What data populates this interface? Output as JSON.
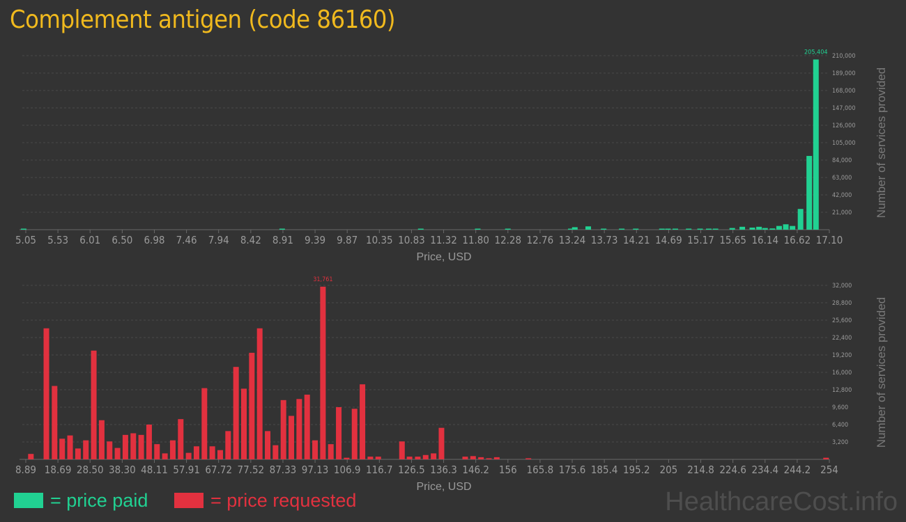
{
  "title": "Complement antigen (code 86160)",
  "colors": {
    "background": "#333333",
    "title": "#f0b91e",
    "paid": "#21d192",
    "requested": "#e2313f",
    "axis_text": "#9a9a9a",
    "grid": "#4a4a4a"
  },
  "legend": {
    "paid_label": "= price paid",
    "requested_label": "= price requested"
  },
  "watermark": "HealthcareCost.info",
  "chart_data": [
    {
      "type": "bar",
      "name": "price paid",
      "xlabel": "Price, USD",
      "ylabel": "Number of services provided",
      "ylim": [
        0,
        210000
      ],
      "ytick_labels": [
        "21,000",
        "42,000",
        "63,000",
        "84,000",
        "105,000",
        "126,000",
        "147,000",
        "168,000",
        "189,000",
        "210,000"
      ],
      "xtick_labels": [
        "5.05",
        "5.53",
        "6.01",
        "6.50",
        "6.98",
        "7.46",
        "7.94",
        "8.42",
        "8.91",
        "9.39",
        "9.87",
        "10.35",
        "10.83",
        "11.32",
        "11.80",
        "12.28",
        "12.76",
        "13.24",
        "13.73",
        "14.21",
        "14.69",
        "15.17",
        "15.65",
        "16.14",
        "16.62",
        "17.10"
      ],
      "xlim": [
        5.05,
        17.1
      ],
      "grid": true,
      "max_label": "205,404",
      "bars": [
        {
          "x": 5.07,
          "y": 900
        },
        {
          "x": 8.93,
          "y": 900
        },
        {
          "x": 11.0,
          "y": 500
        },
        {
          "x": 11.85,
          "y": 500
        },
        {
          "x": 12.3,
          "y": 500
        },
        {
          "x": 13.24,
          "y": 1200
        },
        {
          "x": 13.3,
          "y": 3000
        },
        {
          "x": 13.5,
          "y": 4000
        },
        {
          "x": 13.73,
          "y": 1200
        },
        {
          "x": 14.0,
          "y": 800
        },
        {
          "x": 14.21,
          "y": 600
        },
        {
          "x": 14.6,
          "y": 800
        },
        {
          "x": 14.69,
          "y": 1200
        },
        {
          "x": 14.8,
          "y": 800
        },
        {
          "x": 15.0,
          "y": 800
        },
        {
          "x": 15.17,
          "y": 900
        },
        {
          "x": 15.3,
          "y": 900
        },
        {
          "x": 15.4,
          "y": 1000
        },
        {
          "x": 15.65,
          "y": 2000
        },
        {
          "x": 15.8,
          "y": 3500
        },
        {
          "x": 15.95,
          "y": 2500
        },
        {
          "x": 16.05,
          "y": 3500
        },
        {
          "x": 16.14,
          "y": 2000
        },
        {
          "x": 16.25,
          "y": 1500
        },
        {
          "x": 16.35,
          "y": 4500
        },
        {
          "x": 16.45,
          "y": 6500
        },
        {
          "x": 16.55,
          "y": 4500
        },
        {
          "x": 16.67,
          "y": 25000
        },
        {
          "x": 16.8,
          "y": 89000
        },
        {
          "x": 16.9,
          "y": 205404
        }
      ]
    },
    {
      "type": "bar",
      "name": "price requested",
      "xlabel": "Price, USD",
      "ylabel": "Number of services provided",
      "ylim": [
        0,
        32000
      ],
      "ytick_labels": [
        "3,200",
        "6,400",
        "9,600",
        "12,800",
        "16,000",
        "19,200",
        "22,400",
        "25,600",
        "28,800",
        "32,000"
      ],
      "xtick_labels": [
        "8.89",
        "18.69",
        "28.50",
        "38.30",
        "48.11",
        "57.91",
        "67.72",
        "77.52",
        "87.33",
        "97.13",
        "106.9",
        "116.7",
        "126.5",
        "136.3",
        "146.2",
        "156",
        "165.8",
        "175.6",
        "185.4",
        "195.2",
        "205",
        "214.8",
        "224.6",
        "234.4",
        "244.2",
        "254"
      ],
      "xlim": [
        8.89,
        254
      ],
      "grid": true,
      "max_label": "31,761",
      "bars": [
        {
          "x": 11.5,
          "y": 1000
        },
        {
          "x": 16.2,
          "y": 24100
        },
        {
          "x": 18.69,
          "y": 13500
        },
        {
          "x": 21.0,
          "y": 3800
        },
        {
          "x": 23.4,
          "y": 4400
        },
        {
          "x": 25.8,
          "y": 2000
        },
        {
          "x": 28.2,
          "y": 3500
        },
        {
          "x": 30.6,
          "y": 20000
        },
        {
          "x": 33.0,
          "y": 7200
        },
        {
          "x": 35.4,
          "y": 3300
        },
        {
          "x": 37.8,
          "y": 2100
        },
        {
          "x": 40.2,
          "y": 4500
        },
        {
          "x": 42.6,
          "y": 4800
        },
        {
          "x": 45.0,
          "y": 4500
        },
        {
          "x": 47.4,
          "y": 6400
        },
        {
          "x": 49.8,
          "y": 2800
        },
        {
          "x": 52.2,
          "y": 1100
        },
        {
          "x": 54.6,
          "y": 3500
        },
        {
          "x": 57.0,
          "y": 7400
        },
        {
          "x": 59.4,
          "y": 1200
        },
        {
          "x": 61.8,
          "y": 2400
        },
        {
          "x": 64.2,
          "y": 13100
        },
        {
          "x": 66.6,
          "y": 2400
        },
        {
          "x": 69.0,
          "y": 1700
        },
        {
          "x": 71.4,
          "y": 5200
        },
        {
          "x": 73.8,
          "y": 17000
        },
        {
          "x": 76.2,
          "y": 13000
        },
        {
          "x": 78.6,
          "y": 19600
        },
        {
          "x": 81.0,
          "y": 24100
        },
        {
          "x": 83.4,
          "y": 5200
        },
        {
          "x": 85.8,
          "y": 2600
        },
        {
          "x": 88.2,
          "y": 10900
        },
        {
          "x": 90.6,
          "y": 8000
        },
        {
          "x": 93.0,
          "y": 11100
        },
        {
          "x": 95.4,
          "y": 11900
        },
        {
          "x": 97.8,
          "y": 3500
        },
        {
          "x": 100.2,
          "y": 31761
        },
        {
          "x": 102.6,
          "y": 2800
        },
        {
          "x": 105.0,
          "y": 9600
        },
        {
          "x": 107.4,
          "y": 300
        },
        {
          "x": 109.8,
          "y": 9300
        },
        {
          "x": 112.2,
          "y": 13800
        },
        {
          "x": 114.6,
          "y": 500
        },
        {
          "x": 117.0,
          "y": 500
        },
        {
          "x": 124.2,
          "y": 3300
        },
        {
          "x": 126.5,
          "y": 500
        },
        {
          "x": 129.0,
          "y": 500
        },
        {
          "x": 131.4,
          "y": 800
        },
        {
          "x": 133.8,
          "y": 1100
        },
        {
          "x": 136.2,
          "y": 5800
        },
        {
          "x": 143.4,
          "y": 500
        },
        {
          "x": 145.8,
          "y": 600
        },
        {
          "x": 148.2,
          "y": 400
        },
        {
          "x": 150.6,
          "y": 200
        },
        {
          "x": 153.0,
          "y": 400
        },
        {
          "x": 162.6,
          "y": 200
        },
        {
          "x": 253.0,
          "y": 300
        }
      ]
    }
  ]
}
